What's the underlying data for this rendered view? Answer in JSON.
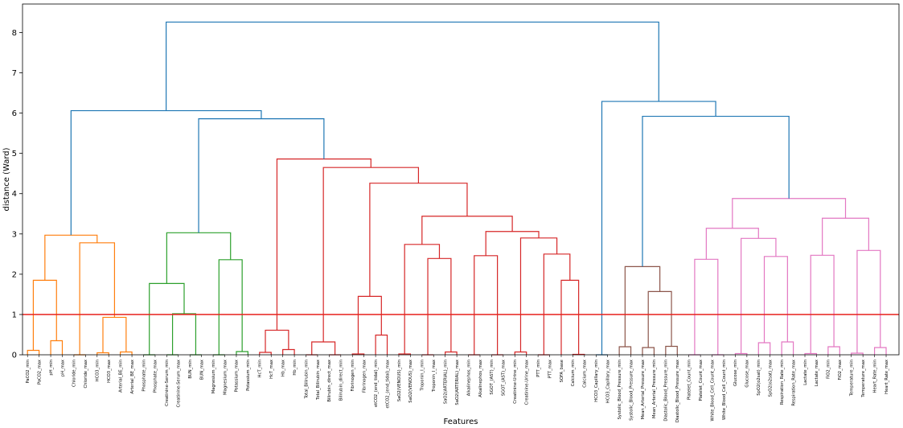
{
  "chart_data": {
    "type": "dendrogram",
    "xlabel": "Features",
    "ylabel": "distance (Ward)",
    "ylim": [
      0,
      8.7
    ],
    "yticks": [
      0,
      1,
      2,
      3,
      4,
      5,
      6,
      7,
      8
    ],
    "cut_threshold": 1.0,
    "cut_color": "#e8231e",
    "colors": {
      "root": "#1f77b4",
      "orange": "#ff7f0e",
      "green": "#2ca02c",
      "red": "#d62728",
      "brown": "#8c564b",
      "pink": "#e377c2"
    },
    "leaves": [
      "PaCO2_min",
      "PaCO2_max",
      "pH_min",
      "pH_max",
      "Chloride_min",
      "Chloride_max",
      "HCO3_min",
      "HCO3_max",
      "Arterial_BE_min",
      "Arterial_BE_max",
      "Phosphate_min",
      "Phosphate_max",
      "Creatinine-Serum_min",
      "Creatinine-Serum_max",
      "BUN_min",
      "BUN_max",
      "Magnesium_min",
      "Magnesium_max",
      "Potassium_max",
      "Potassium_min",
      "HcT_min",
      "HcT_max",
      "Hb_max",
      "Hb_min",
      "Total_Bilirubin_min",
      "Total_Bilirubin_max",
      "Bilirubin_direct_max",
      "Bilirubin_direct_min",
      "Fibrinogen_min",
      "Fibrinogen_max",
      "etCO2_(end_tidal)_min",
      "etCO2_(end_tidal)_max",
      "SaO2(VENOUS)_min",
      "SaO2(VENOUS)_max",
      "Troponin_I_min",
      "Troponin_I_max",
      "SaO2(ARTERIAL)_min",
      "SaO2(ARTERIAL)_max",
      "Alkalinephos_min",
      "Alkalinephos_max",
      "SGOT_(AST)_min",
      "SGOT_(AST)_max",
      "Creatinine-Urine_min",
      "Creatinine-Urine_max",
      "PTT_min",
      "PTT_max",
      "SOFA_base",
      "Calcium_min",
      "Calcium_max",
      "HCO3_Capillary_min",
      "HCO3_Capillary_max",
      "Systolic_Blood_Pressure_min",
      "Systolic_Blood_Pressure_max",
      "Mean_Arterial_Pressure_max",
      "Mean_Arterial_Pressure_min",
      "Diastolic_Blood_Pressure_min",
      "Diastolic_Blood_Pressure_max",
      "Platelet_Count_min",
      "Platelet_Count_max",
      "White_Blood_Cell_Count_max",
      "White_Blood_Cell_Count_min",
      "Glucose_min",
      "Glucose_max",
      "SpO2(o2sat)_min",
      "SpO2(o2sat)_max",
      "Respiration_Rate_min",
      "Respiration_Rate_max",
      "Lactate_min",
      "Lactate_max",
      "FiO2_min",
      "FiO2_max",
      "Temperature_min",
      "Temperature_max",
      "Heart_Rate_min",
      "Heart_Rate_max"
    ],
    "merges": [
      {
        "id": "o1",
        "l": 0,
        "r": 1,
        "h": 0.11,
        "c": "orange"
      },
      {
        "id": "o2",
        "l": 2,
        "r": 3,
        "h": 0.35,
        "c": "orange"
      },
      {
        "id": "o3",
        "l": "o1",
        "r": "o2",
        "h": 1.85,
        "c": "orange"
      },
      {
        "id": "o4",
        "l": 4,
        "r": 5,
        "h": 0.0,
        "c": "orange"
      },
      {
        "id": "o5",
        "l": 6,
        "r": 7,
        "h": 0.05,
        "c": "orange"
      },
      {
        "id": "o6",
        "l": 8,
        "r": 9,
        "h": 0.07,
        "c": "orange"
      },
      {
        "id": "o7",
        "l": "o5",
        "r": "o6",
        "h": 0.93,
        "c": "orange"
      },
      {
        "id": "o8",
        "l": "o4",
        "r": "o7",
        "h": 2.78,
        "c": "orange"
      },
      {
        "id": "o9",
        "l": "o3",
        "r": "o8",
        "h": 2.97,
        "c": "orange"
      },
      {
        "id": "g1",
        "l": 10,
        "r": 11,
        "h": 0.0,
        "c": "green"
      },
      {
        "id": "g2",
        "l": 12,
        "r": 13,
        "h": 0.0,
        "c": "green"
      },
      {
        "id": "g3",
        "l": 14,
        "r": 15,
        "h": 0.0,
        "c": "green"
      },
      {
        "id": "g4",
        "l": "g2",
        "r": "g3",
        "h": 1.02,
        "c": "green"
      },
      {
        "id": "g5",
        "l": "g1",
        "r": "g4",
        "h": 1.77,
        "c": "green"
      },
      {
        "id": "g6",
        "l": 16,
        "r": 17,
        "h": 0.0,
        "c": "green"
      },
      {
        "id": "g7",
        "l": 18,
        "r": 19,
        "h": 0.08,
        "c": "green"
      },
      {
        "id": "g8",
        "l": "g6",
        "r": "g7",
        "h": 2.36,
        "c": "green"
      },
      {
        "id": "g9",
        "l": "g5",
        "r": "g8",
        "h": 3.03,
        "c": "green"
      },
      {
        "id": "r1",
        "l": 20,
        "r": 21,
        "h": 0.06,
        "c": "red"
      },
      {
        "id": "r2",
        "l": 22,
        "r": 23,
        "h": 0.13,
        "c": "red"
      },
      {
        "id": "r3",
        "l": "r1",
        "r": "r2",
        "h": 0.61,
        "c": "red"
      },
      {
        "id": "r4",
        "l": 24,
        "r": 25,
        "h": 0.0,
        "c": "red"
      },
      {
        "id": "r5",
        "l": 26,
        "r": 27,
        "h": 0.0,
        "c": "red"
      },
      {
        "id": "r6",
        "l": "r4",
        "r": "r5",
        "h": 0.32,
        "c": "red"
      },
      {
        "id": "r7",
        "l": 28,
        "r": 29,
        "h": 0.02,
        "c": "red"
      },
      {
        "id": "r8",
        "l": 30,
        "r": 31,
        "h": 0.49,
        "c": "red"
      },
      {
        "id": "r9",
        "l": "r7",
        "r": "r8",
        "h": 1.45,
        "c": "red"
      },
      {
        "id": "r10",
        "l": 32,
        "r": 33,
        "h": 0.02,
        "c": "red"
      },
      {
        "id": "r11",
        "l": 34,
        "r": 35,
        "h": 0.0,
        "c": "red"
      },
      {
        "id": "r12",
        "l": 36,
        "r": 37,
        "h": 0.07,
        "c": "red"
      },
      {
        "id": "r13",
        "l": "r11",
        "r": "r12",
        "h": 2.39,
        "c": "red"
      },
      {
        "id": "r14",
        "l": "r10",
        "r": "r13",
        "h": 2.74,
        "c": "red"
      },
      {
        "id": "r15",
        "l": 38,
        "r": 39,
        "h": 0.0,
        "c": "red"
      },
      {
        "id": "r16",
        "l": 40,
        "r": 41,
        "h": 0.0,
        "c": "red"
      },
      {
        "id": "r17",
        "l": "r15",
        "r": "r16",
        "h": 2.46,
        "c": "red"
      },
      {
        "id": "r18",
        "l": 42,
        "r": 43,
        "h": 0.07,
        "c": "red"
      },
      {
        "id": "r19",
        "l": 44,
        "r": 45,
        "h": 0.0,
        "c": "red"
      },
      {
        "id": "r20",
        "l": 47,
        "r": 48,
        "h": 0.01,
        "c": "red"
      },
      {
        "id": "r21",
        "l": 46,
        "r": "r20",
        "h": 1.85,
        "c": "red"
      },
      {
        "id": "r22",
        "l": "r19",
        "r": "r21",
        "h": 2.5,
        "c": "red"
      },
      {
        "id": "r23",
        "l": "r18",
        "r": "r22",
        "h": 2.9,
        "c": "red"
      },
      {
        "id": "r24",
        "l": "r17",
        "r": "r23",
        "h": 3.06,
        "c": "red"
      },
      {
        "id": "r25",
        "l": "r14",
        "r": "r24",
        "h": 3.44,
        "c": "red"
      },
      {
        "id": "r26",
        "l": "r9",
        "r": "r25",
        "h": 4.26,
        "c": "red"
      },
      {
        "id": "r27",
        "l": "r6",
        "r": "r26",
        "h": 4.65,
        "c": "red"
      },
      {
        "id": "r28",
        "l": "r3",
        "r": "r27",
        "h": 4.86,
        "c": "red"
      },
      {
        "id": "b0",
        "l": 49,
        "r": 50,
        "h": 0.0,
        "c": "root"
      },
      {
        "id": "b1",
        "l": 51,
        "r": 52,
        "h": 0.2,
        "c": "brown"
      },
      {
        "id": "b2",
        "l": 53,
        "r": 54,
        "h": 0.18,
        "c": "brown"
      },
      {
        "id": "b3",
        "l": 55,
        "r": 56,
        "h": 0.21,
        "c": "brown"
      },
      {
        "id": "b4",
        "l": "b2",
        "r": "b3",
        "h": 1.57,
        "c": "brown"
      },
      {
        "id": "b5",
        "l": "b1",
        "r": "b4",
        "h": 2.19,
        "c": "brown"
      },
      {
        "id": "p1",
        "l": 57,
        "r": 58,
        "h": 0.0,
        "c": "pink"
      },
      {
        "id": "p2",
        "l": 59,
        "r": 60,
        "h": 0.0,
        "c": "pink"
      },
      {
        "id": "p3",
        "l": "p1",
        "r": "p2",
        "h": 2.37,
        "c": "pink"
      },
      {
        "id": "p4",
        "l": 61,
        "r": 62,
        "h": 0.03,
        "c": "pink"
      },
      {
        "id": "p5",
        "l": 63,
        "r": 64,
        "h": 0.3,
        "c": "pink"
      },
      {
        "id": "p6",
        "l": 65,
        "r": 66,
        "h": 0.32,
        "c": "pink"
      },
      {
        "id": "p7",
        "l": "p5",
        "r": "p6",
        "h": 2.44,
        "c": "pink"
      },
      {
        "id": "p8",
        "l": "p4",
        "r": "p7",
        "h": 2.89,
        "c": "pink"
      },
      {
        "id": "p9",
        "l": "p3",
        "r": "p8",
        "h": 3.14,
        "c": "pink"
      },
      {
        "id": "p10",
        "l": 67,
        "r": 68,
        "h": 0.03,
        "c": "pink"
      },
      {
        "id": "p11",
        "l": 69,
        "r": 70,
        "h": 0.2,
        "c": "pink"
      },
      {
        "id": "p12",
        "l": "p10",
        "r": "p11",
        "h": 2.47,
        "c": "pink"
      },
      {
        "id": "p13",
        "l": 71,
        "r": 72,
        "h": 0.04,
        "c": "pink"
      },
      {
        "id": "p14",
        "l": 73,
        "r": 74,
        "h": 0.18,
        "c": "pink"
      },
      {
        "id": "p15",
        "l": "p13",
        "r": "p14",
        "h": 2.59,
        "c": "pink"
      },
      {
        "id": "p16",
        "l": "p12",
        "r": "p15",
        "h": 3.39,
        "c": "pink"
      },
      {
        "id": "p17",
        "l": "p9",
        "r": "p16",
        "h": 3.88,
        "c": "pink"
      },
      {
        "id": "B1",
        "l": "g9",
        "r": "r28",
        "h": 5.86,
        "c": "root"
      },
      {
        "id": "B2",
        "l": "o9",
        "r": "B1",
        "h": 6.06,
        "c": "root"
      },
      {
        "id": "B3",
        "l": "b5",
        "r": "p17",
        "h": 5.92,
        "c": "root"
      },
      {
        "id": "B4",
        "l": "b0",
        "r": "B3",
        "h": 6.29,
        "c": "root"
      },
      {
        "id": "B5",
        "l": "B2",
        "r": "B4",
        "h": 8.26,
        "c": "root"
      }
    ]
  }
}
